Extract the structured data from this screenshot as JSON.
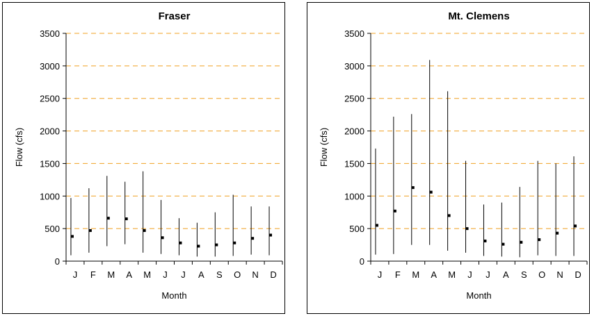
{
  "chart_data": [
    {
      "type": "range",
      "title": "Fraser",
      "xlabel": "Month",
      "ylabel": "Flow (cfs)",
      "ylim": [
        0,
        3500
      ],
      "yticks": [
        0,
        500,
        1000,
        1500,
        2000,
        2500,
        3000,
        3500
      ],
      "categories": [
        "J",
        "F",
        "M",
        "A",
        "M",
        "J",
        "J",
        "A",
        "S",
        "O",
        "N",
        "D"
      ],
      "series": [
        {
          "min": [
            90,
            130,
            230,
            260,
            130,
            110,
            90,
            70,
            70,
            80,
            100,
            90
          ],
          "max": [
            970,
            1120,
            1310,
            1220,
            1380,
            940,
            660,
            590,
            750,
            1020,
            840,
            840
          ],
          "mean": [
            380,
            470,
            660,
            650,
            470,
            360,
            280,
            230,
            250,
            280,
            350,
            400
          ]
        }
      ],
      "grid_color": "#f0a020",
      "grid": true
    },
    {
      "type": "range",
      "title": "Mt. Clemens",
      "xlabel": "Month",
      "ylabel": "Flow (cfs)",
      "ylim": [
        0,
        3500
      ],
      "yticks": [
        0,
        500,
        1000,
        1500,
        2000,
        2500,
        3000,
        3500
      ],
      "categories": [
        "J",
        "F",
        "M",
        "A",
        "M",
        "J",
        "J",
        "A",
        "S",
        "O",
        "N",
        "D"
      ],
      "series": [
        {
          "min": [
            100,
            110,
            250,
            250,
            160,
            130,
            80,
            70,
            60,
            90,
            80,
            80
          ],
          "max": [
            1730,
            2220,
            2260,
            3090,
            2610,
            1540,
            870,
            900,
            1140,
            1540,
            1500,
            1610
          ],
          "mean": [
            550,
            770,
            1130,
            1060,
            700,
            500,
            310,
            260,
            290,
            330,
            430,
            540
          ]
        }
      ],
      "grid_color": "#f0a020",
      "grid": true
    }
  ]
}
